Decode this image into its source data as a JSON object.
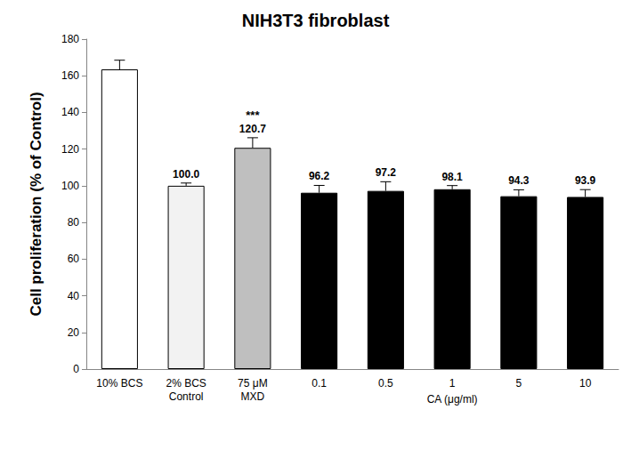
{
  "chart_data": {
    "type": "bar",
    "title": "NIH3T3 fibroblast",
    "ylabel": "Cell proliferation (% of Control)",
    "xlabel": "CA (μg/ml)",
    "xlabel_categories": [
      "0.1",
      "0.5",
      "1",
      "5",
      "10"
    ],
    "categories": [
      "10% BCS",
      "2% BCS\nControl",
      "75 μM\nMXD",
      "0.1",
      "0.5",
      "1",
      "5",
      "10"
    ],
    "values": [
      163.5,
      100.0,
      120.7,
      96.2,
      97.2,
      98.1,
      94.3,
      93.9
    ],
    "value_labels": [
      null,
      "100.0",
      "120.7",
      "96.2",
      "97.2",
      "98.1",
      "94.3",
      "93.9"
    ],
    "errors": [
      5,
      1.5,
      5.5,
      4,
      5,
      2,
      3.5,
      4
    ],
    "colors": [
      "#ffffff",
      "#f2f2f2",
      "#bfbfbf",
      "#000000",
      "#000000",
      "#000000",
      "#000000",
      "#000000"
    ],
    "annotations": [
      {
        "text": "***",
        "category": "75 μM\nMXD"
      }
    ],
    "ylim": [
      0,
      180
    ],
    "yticks": [
      0,
      20,
      40,
      60,
      80,
      100,
      120,
      140,
      160,
      180
    ],
    "grid": false,
    "data_labels": true
  }
}
